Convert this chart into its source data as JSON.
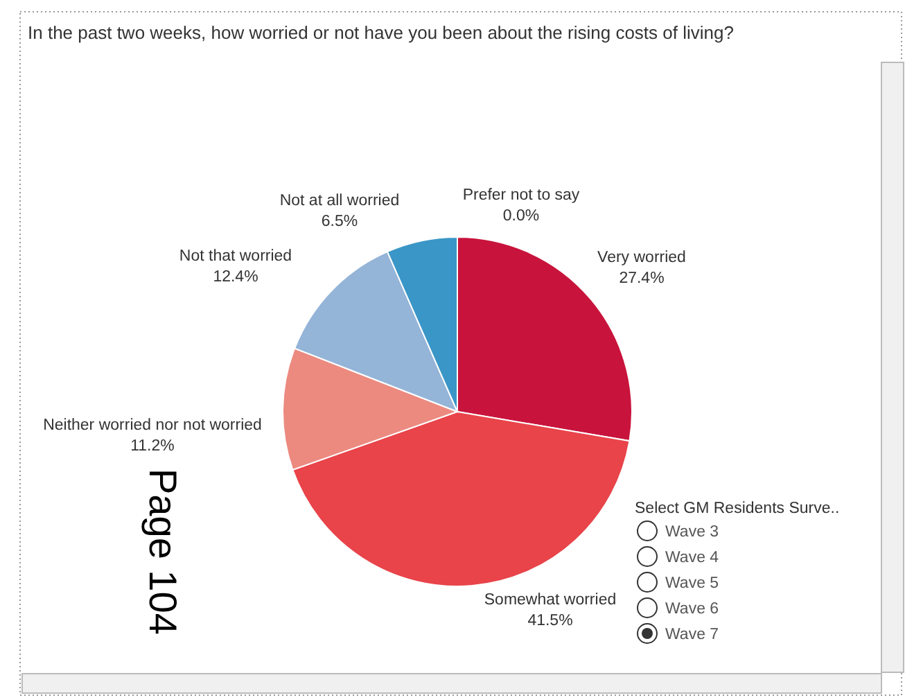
{
  "chart_data": {
    "type": "pie",
    "title": "In the past two weeks, how worried or not have you been about the rising costs of living?",
    "categories": [
      "Very worried",
      "Somewhat worried",
      "Neither worried nor not worried",
      "Not that worried",
      "Not at all worried",
      "Prefer not to say"
    ],
    "values": [
      27.4,
      41.5,
      11.2,
      12.4,
      6.5,
      0.0
    ],
    "colors": [
      "#c8143c",
      "#e8444a",
      "#ec8a80",
      "#94b4d8",
      "#3a96c6",
      "#d4a58c"
    ],
    "value_labels": [
      "27.4%",
      "41.5%",
      "11.2%",
      "12.4%",
      "6.5%",
      "0.0%"
    ],
    "annotations": [
      "Select GM Residents Surve..",
      "Wave 3",
      "Wave 4",
      "Wave 5",
      "Wave 6",
      "Wave 7",
      "Page 104"
    ]
  }
}
